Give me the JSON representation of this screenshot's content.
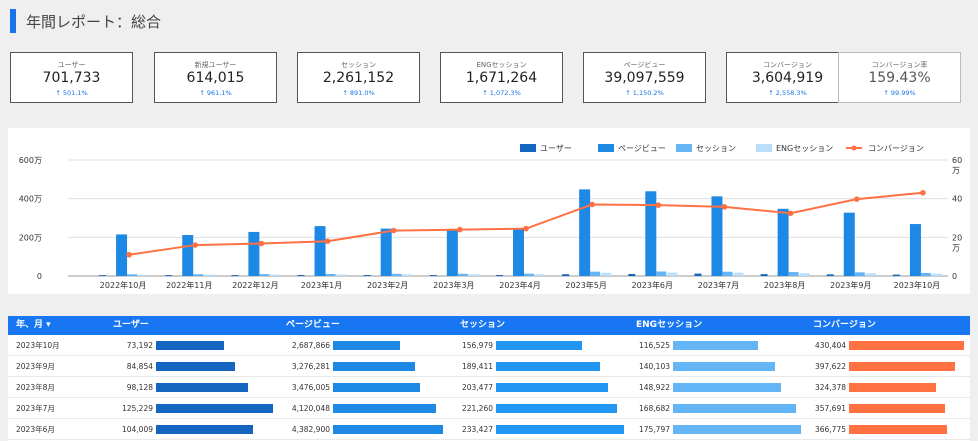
{
  "header": {
    "title": "年間レポート：総合"
  },
  "kpis": [
    {
      "label": "ユーザー",
      "value": "701,733",
      "change": "↑ 501.1%"
    },
    {
      "label": "新規ユーザー",
      "value": "614,015",
      "change": "↑ 961.1%"
    },
    {
      "label": "セッション",
      "value": "2,261,152",
      "change": "↑ 891.0%"
    },
    {
      "label": "ENGセッション",
      "value": "1,671,264",
      "change": "↑ 1,072.3%"
    },
    {
      "label": "ページビュー",
      "value": "39,097,559",
      "change": "↑ 1,150.2%"
    },
    {
      "label": "コンバージョン",
      "value": "3,604,919",
      "change": "↑ 2,558.3%"
    },
    {
      "label": "コンバージョン率",
      "value": "159.43%",
      "change": "↑ 99.99%"
    }
  ],
  "chart_data": {
    "type": "bar",
    "categories": [
      "2022年10月",
      "2022年11月",
      "2022年12月",
      "2023年1月",
      "2023年2月",
      "2023年3月",
      "2023年4月",
      "2023年5月",
      "2023年6月",
      "2023年7月",
      "2023年8月",
      "2023年9月",
      "2023年10月"
    ],
    "y_ticks_left": [
      "0",
      "200万",
      "400万",
      "600万"
    ],
    "y_ticks_right": [
      "0",
      "20\n万",
      "40",
      "60\n万"
    ],
    "ylim_left": [
      0,
      6000000
    ],
    "ylim_right": [
      0,
      600000
    ],
    "legend_position": "top-right",
    "colors": {
      "users": "#1565c0",
      "pageviews": "#1e88e5",
      "sessions": "#64b5f6",
      "eng": "#bbdefb",
      "conversions": "#ff7043"
    },
    "series": [
      {
        "name": "ユーザー",
        "key": "users",
        "axis": "left",
        "values": [
          45000,
          47000,
          48000,
          52000,
          50000,
          48000,
          51000,
          92000,
          104009,
          125229,
          98128,
          84854,
          73192
        ]
      },
      {
        "name": "ページビュー",
        "key": "pageviews",
        "axis": "left",
        "values": [
          2150000,
          2120000,
          2280000,
          2580000,
          2450000,
          2400000,
          2450000,
          4480000,
          4382900,
          4120048,
          3476005,
          3276281,
          2687866
        ]
      },
      {
        "name": "セッション",
        "key": "sessions",
        "axis": "left",
        "values": [
          90000,
          95000,
          100000,
          108000,
          112000,
          115000,
          120000,
          225000,
          233427,
          221260,
          203477,
          189411,
          156979
        ]
      },
      {
        "name": "ENGセッション",
        "key": "eng",
        "axis": "left",
        "values": [
          65000,
          70000,
          73000,
          80000,
          83000,
          86000,
          90000,
          165000,
          175797,
          168682,
          148922,
          140103,
          116525
        ]
      },
      {
        "name": "コンバージョン",
        "key": "conversions",
        "axis": "right",
        "values": [
          110000,
          160000,
          168000,
          180000,
          235000,
          240000,
          245000,
          370000,
          366775,
          357691,
          324378,
          397622,
          430404
        ]
      }
    ]
  },
  "table": {
    "columns": [
      "年、月 ▾",
      "ユーザー",
      "ページビュー",
      "セッション",
      "ENGセッション",
      "コンバージョン"
    ],
    "rows": [
      {
        "month": "2023年10月",
        "users": "73,192",
        "pageviews": "2,687,866",
        "sessions": "156,979",
        "eng": "116,525",
        "conversions": "430,404"
      },
      {
        "month": "2023年9月",
        "users": "84,854",
        "pageviews": "3,276,281",
        "sessions": "189,411",
        "eng": "140,103",
        "conversions": "397,622"
      },
      {
        "month": "2023年8月",
        "users": "98,128",
        "pageviews": "3,476,005",
        "sessions": "203,477",
        "eng": "148,922",
        "conversions": "324,378"
      },
      {
        "month": "2023年7月",
        "users": "125,229",
        "pageviews": "4,120,048",
        "sessions": "221,260",
        "eng": "168,682",
        "conversions": "357,691"
      },
      {
        "month": "2023年6月",
        "users": "104,009",
        "pageviews": "4,382,900",
        "sessions": "233,427",
        "eng": "175,797",
        "conversions": "366,775"
      }
    ]
  }
}
